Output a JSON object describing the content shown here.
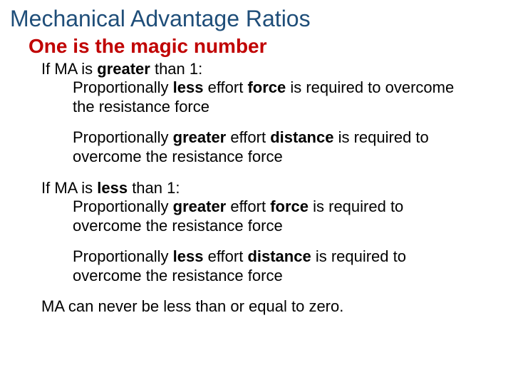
{
  "colors": {
    "title": "#1f4e79",
    "subtitle": "#c00000",
    "body": "#000000",
    "background": "#ffffff"
  },
  "typography": {
    "title_fontsize": 32,
    "subtitle_fontsize": 28,
    "body_fontsize": 22,
    "font_family": "Arial"
  },
  "title": "Mechanical Advantage Ratios",
  "subtitle": "One is the magic number",
  "gt1": {
    "head_pre": "If MA is ",
    "head_bold": "greater",
    "head_post": " than 1:",
    "p1_pre": "Proportionally ",
    "p1_b1": "less",
    "p1_mid": " effort ",
    "p1_b2": "force",
    "p1_post": " is required to overcome the resistance force",
    "p2_pre": "Proportionally ",
    "p2_b1": "greater",
    "p2_mid": " effort ",
    "p2_b2": "distance",
    "p2_post": " is required to overcome the resistance force"
  },
  "lt1": {
    "head_pre": "If MA is ",
    "head_bold": "less",
    "head_post": " than 1:",
    "p1_pre": "Proportionally ",
    "p1_b1": "greater",
    "p1_mid": " effort ",
    "p1_b2": "force",
    "p1_post": " is required to overcome the resistance force",
    "p2_pre": "Proportionally ",
    "p2_b1": "less",
    "p2_mid": " effort ",
    "p2_b2": "distance",
    "p2_post": " is required to overcome the resistance force"
  },
  "final": "MA can never be less than or equal to zero."
}
